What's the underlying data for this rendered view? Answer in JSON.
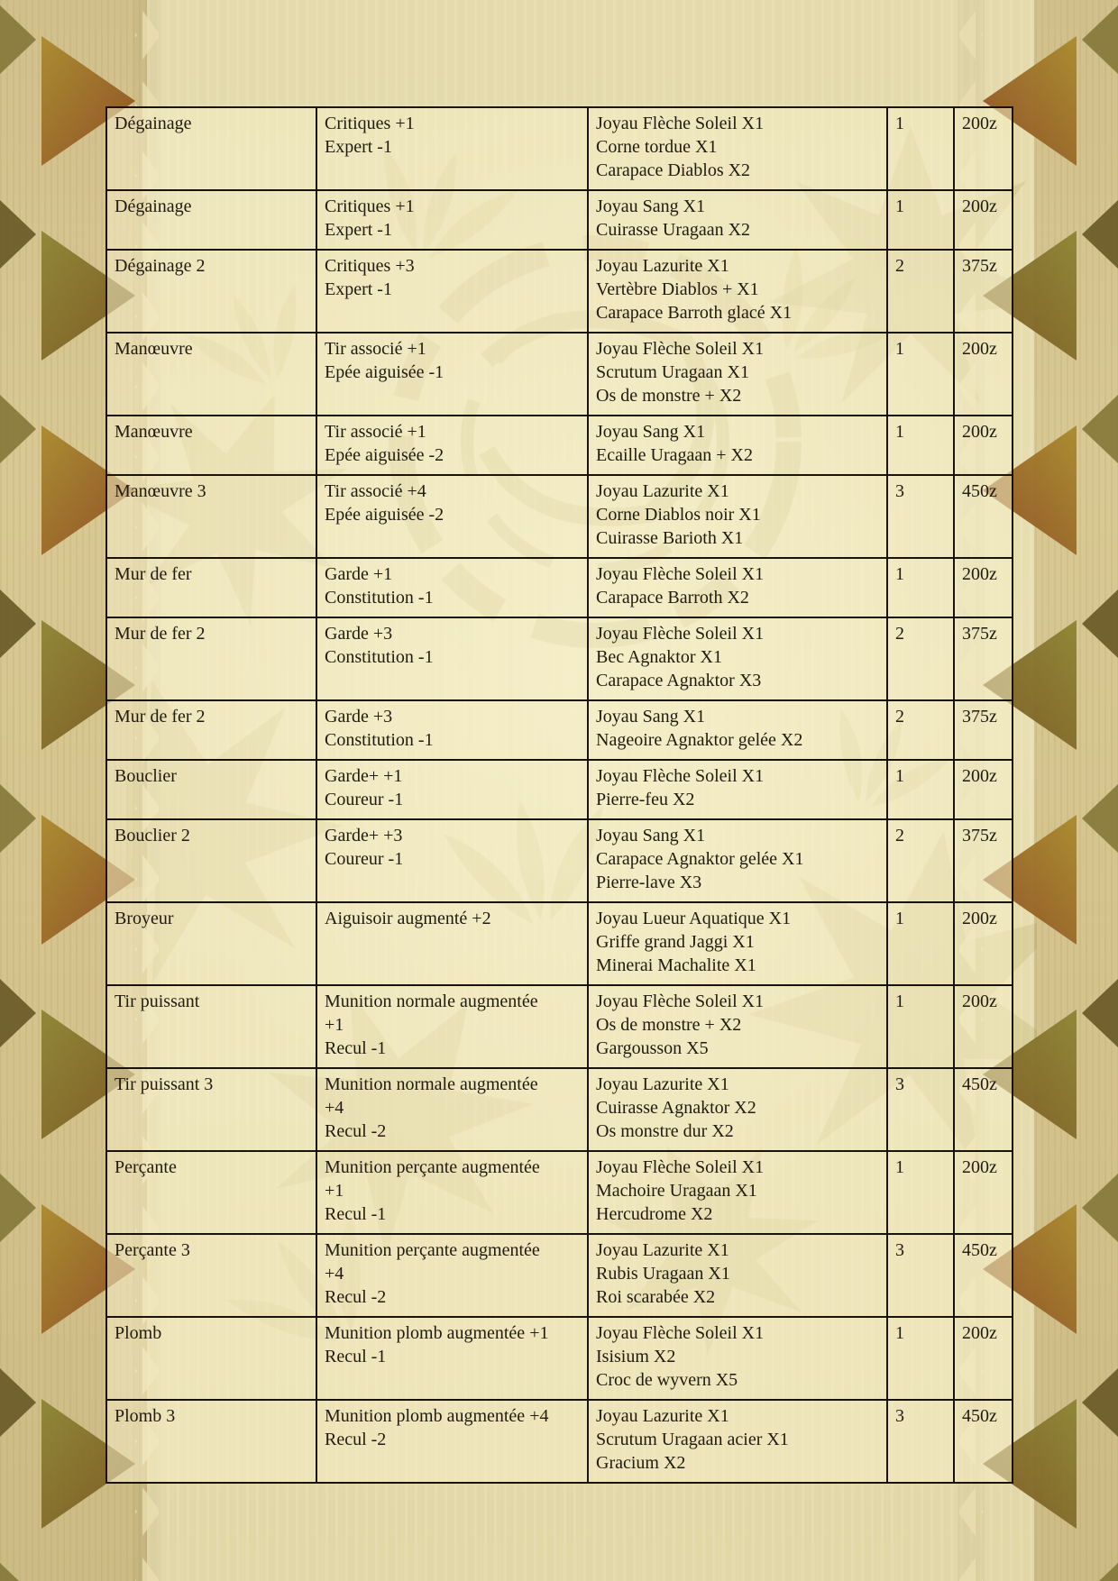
{
  "document": {
    "language": "fr",
    "description_currency_suffix": "z"
  },
  "theme": {
    "parchment": "#e6dcab",
    "page-tan": "#d4c28c",
    "line": "#19130b",
    "ink": "#211b0e",
    "triangle-olive": "#86793a",
    "triangle-rust": "#8a4a20",
    "triangle-gold": "#a98a2e",
    "watermark": "#a09245"
  },
  "table": {
    "columns": [
      "name",
      "skills",
      "materials",
      "qty",
      "price"
    ],
    "rows": [
      {
        "name": "Dégainage",
        "skills": [
          "Critiques +1",
          "Expert -1"
        ],
        "materials": [
          "Joyau Flèche Soleil X1",
          "Corne tordue X1",
          "Carapace Diablos X2"
        ],
        "qty": "1",
        "price": "200z"
      },
      {
        "name": "Dégainage",
        "skills": [
          "Critiques +1",
          "Expert -1"
        ],
        "materials": [
          "Joyau Sang X1",
          "Cuirasse Uragaan X2"
        ],
        "qty": "1",
        "price": "200z"
      },
      {
        "name": "Dégainage 2",
        "skills": [
          "Critiques +3",
          "Expert -1"
        ],
        "materials": [
          "Joyau Lazurite X1",
          "Vertèbre Diablos + X1",
          "Carapace Barroth glacé X1"
        ],
        "qty": "2",
        "price": "375z"
      },
      {
        "name": "Manœuvre",
        "skills": [
          "Tir associé +1",
          "Epée aiguisée -1"
        ],
        "materials": [
          "Joyau Flèche Soleil X1",
          "Scrutum Uragaan X1",
          "Os de monstre + X2"
        ],
        "qty": "1",
        "price": "200z"
      },
      {
        "name": "Manœuvre",
        "skills": [
          "Tir associé +1",
          "Epée aiguisée -2"
        ],
        "materials": [
          "Joyau Sang X1",
          "Ecaille Uragaan + X2"
        ],
        "qty": "1",
        "price": "200z"
      },
      {
        "name": "Manœuvre 3",
        "skills": [
          "Tir associé +4",
          "Epée aiguisée -2"
        ],
        "materials": [
          "Joyau Lazurite X1",
          "Corne Diablos noir X1",
          "Cuirasse Barioth X1"
        ],
        "qty": "3",
        "price": "450z"
      },
      {
        "name": "Mur de fer",
        "skills": [
          "Garde +1",
          "Constitution -1"
        ],
        "materials": [
          "Joyau Flèche Soleil X1",
          "Carapace Barroth X2"
        ],
        "qty": "1",
        "price": "200z"
      },
      {
        "name": "Mur de fer 2",
        "skills": [
          "Garde +3",
          "Constitution -1"
        ],
        "materials": [
          "Joyau Flèche Soleil X1",
          "Bec Agnaktor X1",
          "Carapace Agnaktor X3"
        ],
        "qty": "2",
        "price": "375z"
      },
      {
        "name": "Mur de fer 2",
        "skills": [
          "Garde +3",
          "Constitution -1"
        ],
        "materials": [
          "Joyau Sang X1",
          "Nageoire Agnaktor gelée X2"
        ],
        "qty": "2",
        "price": "375z"
      },
      {
        "name": "Bouclier",
        "skills": [
          "Garde+ +1",
          "Coureur -1"
        ],
        "materials": [
          "Joyau Flèche Soleil X1",
          "Pierre-feu X2"
        ],
        "qty": "1",
        "price": "200z"
      },
      {
        "name": "Bouclier 2",
        "skills": [
          "Garde+ +3",
          "Coureur -1"
        ],
        "materials": [
          "Joyau Sang X1",
          "Carapace Agnaktor gelée X1",
          "Pierre-lave X3"
        ],
        "qty": "2",
        "price": "375z"
      },
      {
        "name": "Broyeur",
        "skills": [
          "Aiguisoir augmenté +2"
        ],
        "materials": [
          "Joyau Lueur Aquatique X1",
          "Griffe grand Jaggi X1",
          "Minerai Machalite X1"
        ],
        "qty": "1",
        "price": "200z"
      },
      {
        "name": "Tir puissant",
        "skills": [
          "Munition normale augmentée",
          "+1",
          "Recul -1"
        ],
        "materials": [
          "Joyau Flèche Soleil X1",
          "Os de monstre + X2",
          "Gargousson X5"
        ],
        "qty": "1",
        "price": "200z"
      },
      {
        "name": "Tir puissant 3",
        "skills": [
          "Munition normale augmentée",
          "+4",
          "Recul -2"
        ],
        "materials": [
          "Joyau Lazurite X1",
          "Cuirasse Agnaktor X2",
          "Os monstre dur X2"
        ],
        "qty": "3",
        "price": "450z"
      },
      {
        "name": "Perçante",
        "skills": [
          "Munition perçante augmentée",
          "+1",
          "Recul -1"
        ],
        "materials": [
          "Joyau Flèche Soleil X1",
          "Machoire Uragaan X1",
          "Hercudrome X2"
        ],
        "qty": "1",
        "price": "200z"
      },
      {
        "name": "Perçante 3",
        "skills": [
          "Munition perçante augmentée",
          "+4",
          "Recul -2"
        ],
        "materials": [
          "Joyau Lazurite X1",
          "Rubis Uragaan X1",
          "Roi scarabée X2"
        ],
        "qty": "3",
        "price": "450z"
      },
      {
        "name": "Plomb",
        "skills": [
          "Munition plomb augmentée +1",
          "Recul -1"
        ],
        "materials": [
          "Joyau Flèche Soleil X1",
          "Isisium X2",
          "Croc de wyvern X5"
        ],
        "qty": "1",
        "price": "200z"
      },
      {
        "name": "Plomb 3",
        "skills": [
          "Munition plomb augmentée +4",
          "Recul -2"
        ],
        "materials": [
          "Joyau Lazurite X1",
          "Scrutum Uragaan acier X1",
          "Gracium X2"
        ],
        "qty": "3",
        "price": "450z"
      }
    ]
  }
}
